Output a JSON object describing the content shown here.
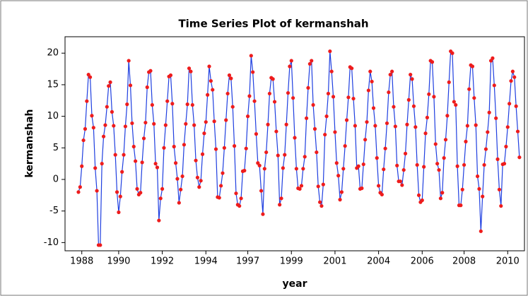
{
  "chart_data": {
    "type": "line",
    "title": "Time Series Plot of kermanshah",
    "x_label": "year",
    "y_label": "kermanshah",
    "x": [
      1,
      2,
      3,
      4,
      5,
      6,
      7,
      8,
      9,
      10,
      11,
      12,
      13,
      14,
      15,
      16,
      17,
      18,
      19,
      20,
      21,
      22,
      23,
      24,
      25,
      26,
      27,
      28,
      29,
      30,
      31,
      32,
      33,
      34,
      35,
      36,
      37,
      38,
      39,
      40,
      41,
      42,
      43,
      44,
      45,
      46,
      47,
      48,
      49,
      50,
      51,
      52,
      53,
      54,
      55,
      56,
      57,
      58,
      59,
      60,
      61,
      62,
      63,
      64,
      65,
      66,
      67,
      68,
      69,
      70,
      71,
      72,
      73,
      74,
      75,
      76,
      77,
      78,
      79,
      80,
      81,
      82,
      83,
      84,
      85,
      86,
      87,
      88,
      89,
      90,
      91,
      92,
      93,
      94,
      95,
      96,
      97,
      98,
      99,
      100,
      101,
      102,
      103,
      104,
      105,
      106,
      107,
      108,
      109,
      110,
      111,
      112,
      113,
      114,
      115,
      116,
      117,
      118,
      119,
      120,
      121,
      122,
      123,
      124,
      125,
      126,
      127,
      128,
      129,
      130,
      131,
      132,
      133,
      134,
      135,
      136,
      137,
      138,
      139,
      140,
      141,
      142,
      143,
      144,
      145,
      146,
      147,
      148,
      149,
      150,
      151,
      152,
      153,
      154,
      155,
      156,
      157,
      158,
      159,
      160,
      161,
      162,
      163,
      164,
      165,
      166,
      167,
      168,
      169,
      170,
      171,
      172,
      173,
      174,
      175,
      176,
      177,
      178,
      179,
      180,
      181,
      182,
      183,
      184,
      185,
      186,
      187,
      188,
      189,
      190,
      191,
      192,
      193,
      194,
      195,
      196,
      197,
      198,
      199,
      200,
      201,
      202,
      203,
      204,
      205,
      206,
      207,
      208,
      209,
      210,
      211,
      212,
      213,
      214,
      215,
      216,
      217,
      218,
      219,
      220,
      221,
      222,
      223,
      224,
      225,
      226,
      227,
      228,
      229,
      230,
      231,
      232,
      233,
      234,
      235,
      236,
      237,
      238,
      239,
      240,
      241,
      242,
      243,
      244,
      245,
      246,
      247,
      248,
      249,
      250,
      251,
      252,
      253,
      254,
      255,
      256,
      257,
      258,
      259,
      260,
      261,
      262,
      263,
      264
    ],
    "series": [
      {
        "name": "kermanshah",
        "color": "#1f3fe0",
        "marker_color": "#ee1c1c",
        "values": [
          -2.0,
          -1.2,
          2.1,
          6.2,
          8.0,
          12.4,
          16.6,
          16.2,
          10.1,
          8.2,
          1.8,
          -1.8,
          -10.4,
          -10.4,
          2.5,
          6.8,
          8.6,
          11.5,
          14.8,
          15.4,
          10.7,
          8.5,
          3.9,
          -2.0,
          -5.2,
          -2.7,
          1.2,
          3.9,
          8.4,
          11.9,
          18.8,
          14.9,
          8.9,
          5.2,
          2.9,
          -1.5,
          -2.4,
          -2.1,
          2.7,
          6.5,
          9.0,
          14.6,
          17.0,
          17.2,
          11.8,
          8.8,
          2.5,
          1.9,
          -6.5,
          -3.0,
          -1.5,
          5.0,
          8.6,
          12.4,
          16.3,
          16.5,
          12.0,
          5.2,
          2.6,
          0.1,
          -3.7,
          -1.6,
          0.5,
          5.5,
          8.8,
          11.9,
          17.6,
          17.1,
          11.8,
          8.6,
          3.0,
          0.3,
          -1.2,
          -0.2,
          4.0,
          7.3,
          9.1,
          13.4,
          17.9,
          15.6,
          14.2,
          9.2,
          4.8,
          -2.8,
          -2.9,
          -1.0,
          1.0,
          5.0,
          9.4,
          13.6,
          16.5,
          16.0,
          11.5,
          5.3,
          -2.2,
          -4.0,
          -4.2,
          -3.0,
          1.3,
          1.4,
          4.9,
          10.0,
          13.2,
          19.6,
          17.0,
          12.4,
          7.2,
          2.6,
          2.2,
          -1.8,
          -5.5,
          1.7,
          4.3,
          8.7,
          13.6,
          16.1,
          15.9,
          12.3,
          7.6,
          3.8,
          -4.0,
          -3.0,
          1.8,
          3.9,
          8.7,
          13.7,
          17.9,
          18.8,
          12.9,
          6.6,
          1.7,
          -1.4,
          -1.5,
          -1.0,
          1.7,
          3.6,
          9.7,
          14.5,
          18.3,
          18.8,
          11.8,
          8.0,
          4.3,
          -1.1,
          -3.6,
          -4.2,
          -0.8,
          7.1,
          10.0,
          13.6,
          20.3,
          17.1,
          13.1,
          7.5,
          2.6,
          0.6,
          -3.2,
          -2.0,
          1.7,
          5.3,
          9.4,
          13.0,
          17.8,
          17.6,
          12.8,
          8.5,
          1.8,
          2.1,
          -1.5,
          -1.4,
          2.4,
          6.3,
          9.1,
          14.1,
          17.1,
          15.5,
          11.3,
          8.5,
          3.4,
          -1.0,
          -2.1,
          -2.4,
          1.6,
          4.9,
          8.9,
          13.8,
          16.6,
          17.1,
          11.5,
          8.4,
          2.2,
          -0.3,
          -0.3,
          -0.9,
          1.5,
          4.1,
          8.7,
          12.6,
          16.6,
          15.9,
          11.6,
          8.3,
          2.3,
          -2.5,
          -3.6,
          -3.3,
          2.0,
          7.3,
          9.8,
          13.5,
          18.8,
          18.6,
          13.1,
          5.6,
          2.5,
          1.5,
          -3.0,
          -2.1,
          3.4,
          6.3,
          10.1,
          15.4,
          20.3,
          20.0,
          12.3,
          11.8,
          2.1,
          -4.1,
          -4.1,
          -1.6,
          2.3,
          6.0,
          8.5,
          14.3,
          18.1,
          17.9,
          12.9,
          8.6,
          0.5,
          -1.5,
          -8.2,
          -2.7,
          2.3,
          4.8,
          7.5,
          10.6,
          18.8,
          19.2,
          14.9,
          9.7,
          3.2,
          -1.6,
          -4.2,
          2.4,
          2.5,
          5.2,
          8.3,
          12.0,
          15.6,
          17.1,
          16.2,
          11.6,
          7.6,
          3.5
        ]
      }
    ],
    "xlim": [
      -7,
      267
    ],
    "xticks": [
      {
        "value": 3,
        "label": "1988"
      },
      {
        "value": 25,
        "label": "1990"
      },
      {
        "value": 51,
        "label": "1992"
      },
      {
        "value": 77,
        "label": "1994"
      },
      {
        "value": 102,
        "label": "1997"
      },
      {
        "value": 128,
        "label": "1999"
      },
      {
        "value": 154,
        "label": "2001"
      },
      {
        "value": 180,
        "label": "2004"
      },
      {
        "value": 206,
        "label": "2006"
      },
      {
        "value": 231,
        "label": "2008"
      },
      {
        "value": 257,
        "label": "2010"
      }
    ],
    "ylim": [
      -11.3,
      22.6
    ],
    "yticks": [
      -10,
      -5,
      0,
      5,
      10,
      15,
      20
    ]
  }
}
